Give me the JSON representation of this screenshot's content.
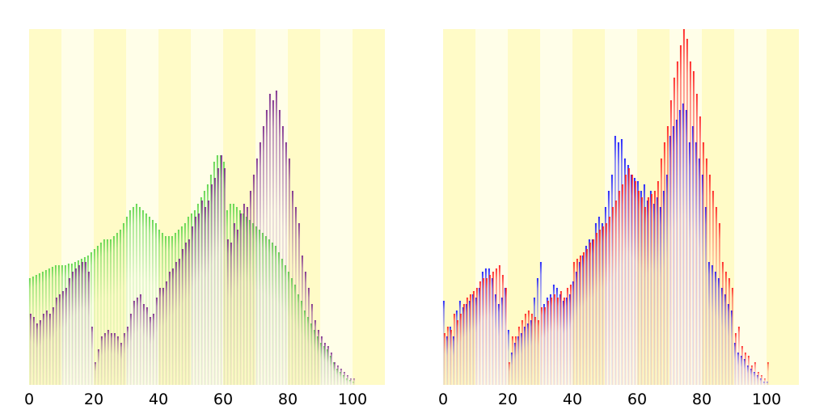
{
  "chart_data": [
    {
      "type": "bar",
      "title": "",
      "xlabel": "",
      "ylabel": "",
      "xlim": [
        0,
        110
      ],
      "ylim": [
        0,
        110
      ],
      "x_ticks": [
        "0",
        "20",
        "40",
        "60",
        "80",
        "100"
      ],
      "grid": false,
      "legend": "none",
      "background_bands": {
        "width": 10,
        "colors": [
          "#fffbc7",
          "#fffee8"
        ]
      },
      "series": [
        {
          "color": "#5cd54a",
          "values": [
            33,
            33.5,
            34,
            34.5,
            35,
            35.5,
            36,
            36.5,
            37,
            37,
            37,
            37,
            37.5,
            37.5,
            38,
            38.5,
            39,
            39.5,
            40,
            41,
            42,
            43,
            44,
            45,
            45,
            45,
            46,
            47,
            48,
            50,
            52,
            54,
            55,
            56,
            55,
            54,
            53,
            52,
            51,
            50,
            48,
            47,
            46,
            46,
            46,
            47,
            48,
            49,
            50,
            52,
            53,
            54,
            56,
            58,
            60,
            62,
            65,
            69,
            71,
            71,
            69,
            54,
            56,
            56,
            55,
            54,
            53,
            52,
            51,
            50,
            49,
            48,
            47,
            46,
            45,
            44,
            43,
            41,
            39,
            37,
            35,
            33,
            31,
            28,
            26,
            23,
            21,
            19,
            17,
            15,
            13,
            12,
            11,
            9,
            7,
            5,
            4,
            3,
            2,
            1.5,
            1
          ]
        },
        {
          "color": "#7b2a8c",
          "values": [
            22,
            21,
            19,
            20,
            22,
            23,
            22,
            24,
            27,
            28,
            29,
            30,
            33,
            35,
            36,
            37,
            38,
            38,
            35,
            18,
            7,
            11,
            15,
            16,
            17,
            16,
            16,
            15,
            13,
            16,
            18,
            22,
            26,
            27,
            28,
            25,
            24,
            21,
            22,
            27,
            30,
            30,
            32,
            35,
            36,
            38,
            39,
            42,
            44,
            45,
            49,
            52,
            53,
            57,
            55,
            57,
            62,
            64,
            67,
            71,
            67,
            45,
            44,
            50,
            48,
            53,
            56,
            55,
            60,
            65,
            70,
            75,
            80,
            85,
            90,
            88,
            91,
            85,
            80,
            75,
            70,
            60,
            55,
            50,
            40,
            35,
            30,
            25,
            20,
            17,
            15,
            13,
            12,
            10,
            7,
            6,
            5,
            4,
            3,
            2,
            2
          ]
        }
      ]
    },
    {
      "type": "bar",
      "title": "",
      "xlabel": "",
      "ylabel": "",
      "xlim": [
        0,
        110
      ],
      "ylim": [
        0,
        110
      ],
      "x_ticks": [
        "0",
        "20",
        "40",
        "60",
        "80",
        "100"
      ],
      "grid": false,
      "legend": "none",
      "background_bands": {
        "width": 10,
        "colors": [
          "#fffbc7",
          "#fffee8"
        ]
      },
      "series": [
        {
          "color": "#1a1aff",
          "values": [
            26,
            15,
            18,
            15,
            23,
            26,
            24,
            25,
            26,
            28,
            27,
            30,
            35,
            36,
            36,
            33,
            28,
            25,
            27,
            30,
            17,
            10,
            13,
            15,
            16,
            18,
            19,
            20,
            27,
            33,
            38,
            25,
            27,
            28,
            31,
            30,
            28,
            26,
            27,
            28,
            32,
            35,
            38,
            40,
            43,
            45,
            45,
            50,
            52,
            50,
            55,
            60,
            65,
            77,
            75,
            76,
            70,
            68,
            65,
            64,
            63,
            60,
            62,
            57,
            60,
            56,
            58,
            55,
            60,
            65,
            77,
            80,
            82,
            85,
            87,
            85,
            75,
            80,
            75,
            70,
            65,
            55,
            38,
            37,
            35,
            33,
            30,
            28,
            25,
            23,
            13,
            10,
            9,
            8,
            6,
            5,
            4,
            3,
            2,
            1,
            1
          ]
        },
        {
          "color": "#ff2020",
          "values": [
            16,
            18,
            17,
            22,
            20,
            22,
            25,
            27,
            28,
            29,
            30,
            32,
            33,
            33,
            34,
            35,
            36,
            37,
            34,
            30,
            7,
            15,
            15,
            18,
            20,
            22,
            23,
            22,
            21,
            20,
            24,
            24,
            26,
            27,
            28,
            27,
            29,
            27,
            30,
            31,
            38,
            39,
            40,
            41,
            42,
            44,
            45,
            47,
            48,
            49,
            50,
            52,
            55,
            57,
            60,
            62,
            65,
            67,
            65,
            63,
            60,
            58,
            55,
            58,
            59,
            60,
            63,
            70,
            75,
            80,
            88,
            95,
            100,
            105,
            110,
            107,
            100,
            97,
            90,
            83,
            75,
            70,
            65,
            60,
            55,
            50,
            38,
            35,
            33,
            30,
            16,
            18,
            12,
            10,
            9,
            6,
            7,
            4,
            3,
            2,
            7
          ]
        }
      ]
    }
  ]
}
